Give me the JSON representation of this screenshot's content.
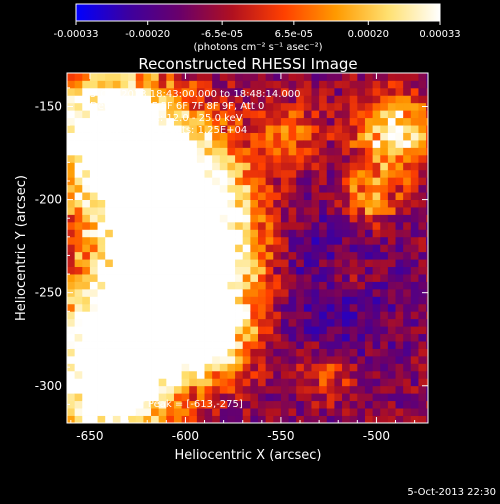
{
  "chart_data": {
    "type": "heatmap",
    "title": "Reconstructed RHESSI Image",
    "xlabel": "Heliocentric X (arcsec)",
    "ylabel": "Heliocentric Y (arcsec)",
    "xlim": [
      -662,
      -473
    ],
    "ylim": [
      -320,
      -132
    ],
    "xticks": [
      -650,
      -600,
      -550,
      -500
    ],
    "yticks": [
      -150,
      -200,
      -250,
      -300
    ],
    "xtick_labels": [
      "-650",
      "-600",
      "-550",
      "-500"
    ],
    "ytick_labels": [
      "-150",
      "-200",
      "-250",
      "-300"
    ],
    "colorbar": {
      "range": [
        -0.00033,
        0.00033
      ],
      "ticks": [
        -0.00033,
        -0.0002,
        -6.5e-05,
        6.5e-05,
        0.0002,
        0.00033
      ],
      "tick_labels": [
        "-0.00033",
        "-0.00020",
        "-6.5e-05",
        "6.5e-05",
        "0.00020",
        "0.00033"
      ],
      "unit_label": "(photons cm⁻² s⁻¹ asec⁻²)",
      "colors": [
        "#0000ff",
        "#3c00a0",
        "#6a006a",
        "#b01020",
        "#ff4000",
        "#ff9a00",
        "#ffe070",
        "#ffffff"
      ]
    },
    "hotspots": [
      {
        "x": -640,
        "y": -160,
        "amp": 1.0,
        "r": 22
      },
      {
        "x": -612,
        "y": -196,
        "amp": 1.25,
        "r": 26
      },
      {
        "x": -600,
        "y": -232,
        "amp": 1.1,
        "r": 24
      },
      {
        "x": -630,
        "y": -272,
        "amp": 1.15,
        "r": 24
      },
      {
        "x": -640,
        "y": -305,
        "amp": 0.85,
        "r": 20
      },
      {
        "x": -590,
        "y": -270,
        "amp": 0.9,
        "r": 16
      },
      {
        "x": -545,
        "y": -165,
        "amp": 0.35,
        "r": 12
      },
      {
        "x": -505,
        "y": -200,
        "amp": 0.45,
        "r": 12
      },
      {
        "x": -490,
        "y": -165,
        "amp": 0.7,
        "r": 14
      },
      {
        "x": -515,
        "y": -240,
        "amp": 0.25,
        "r": 10
      },
      {
        "x": -525,
        "y": -295,
        "amp": 0.3,
        "r": 10
      }
    ],
    "annotations": [
      "5-Oct-2013 18:43:00.000 to 18:48:14.000",
      "Detectors: 3F 5F 6F 7F 8F 9F, Att 0",
      "Energy Range: 12.0 - 25.0 keV",
      "Clean    Total counts: 1.25E+04"
    ],
    "peak_label": "Position of Peak = [-613,-275]",
    "peak": [
      -613,
      -275
    ]
  },
  "footer_timestamp": "5-Oct-2013 22:30",
  "colors": {
    "background": "#000000",
    "foreground": "#ffffff"
  }
}
